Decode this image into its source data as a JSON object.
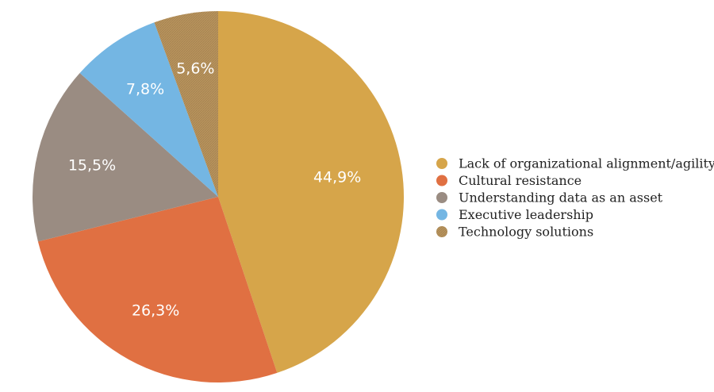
{
  "chart_data": {
    "type": "pie",
    "title": "",
    "legend_position": "right",
    "slices": [
      {
        "name": "Lack of organizational alignment/agility",
        "value": 44.9,
        "label": "44,9%",
        "color": "#d6a54a"
      },
      {
        "name": "Cultural resistance",
        "value": 26.3,
        "label": "26,3%",
        "color": "#e07042"
      },
      {
        "name": "Understanding data as an asset",
        "value": 15.5,
        "label": "15,5%",
        "color": "#9a8c82"
      },
      {
        "name": "Executive leadership",
        "value": 7.8,
        "label": "7,8%",
        "color": "#74b6e3"
      },
      {
        "name": "Technology solutions",
        "value": 5.6,
        "label": "5,6%",
        "color": "#b8935d",
        "hatched": true
      }
    ]
  }
}
